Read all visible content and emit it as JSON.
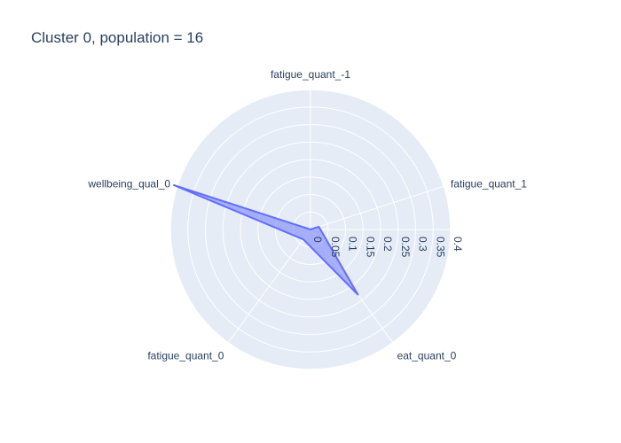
{
  "chart_data": {
    "type": "radar",
    "title": "Cluster 0, population = 16",
    "categories": [
      "fatigue_quant_-1",
      "fatigue_quant_1",
      "eat_quant_0",
      "fatigue_quant_0",
      "wellbeing_qual_0"
    ],
    "series": [
      {
        "values": [
          0.0,
          0.025,
          0.23,
          0.035,
          0.41
        ]
      }
    ],
    "radial_range": [
      0,
      0.4
    ],
    "radial_ticks": [
      "0",
      "0.05",
      "0.1",
      "0.15",
      "0.2",
      "0.25",
      "0.3",
      "0.35",
      "0.4"
    ],
    "grid": true,
    "colors": {
      "background": "#e5ecf6",
      "grid": "#ffffff",
      "series_line": "#636efa",
      "series_fill": "rgba(99,110,250,0.5)",
      "text": "#2a3f5f"
    }
  }
}
